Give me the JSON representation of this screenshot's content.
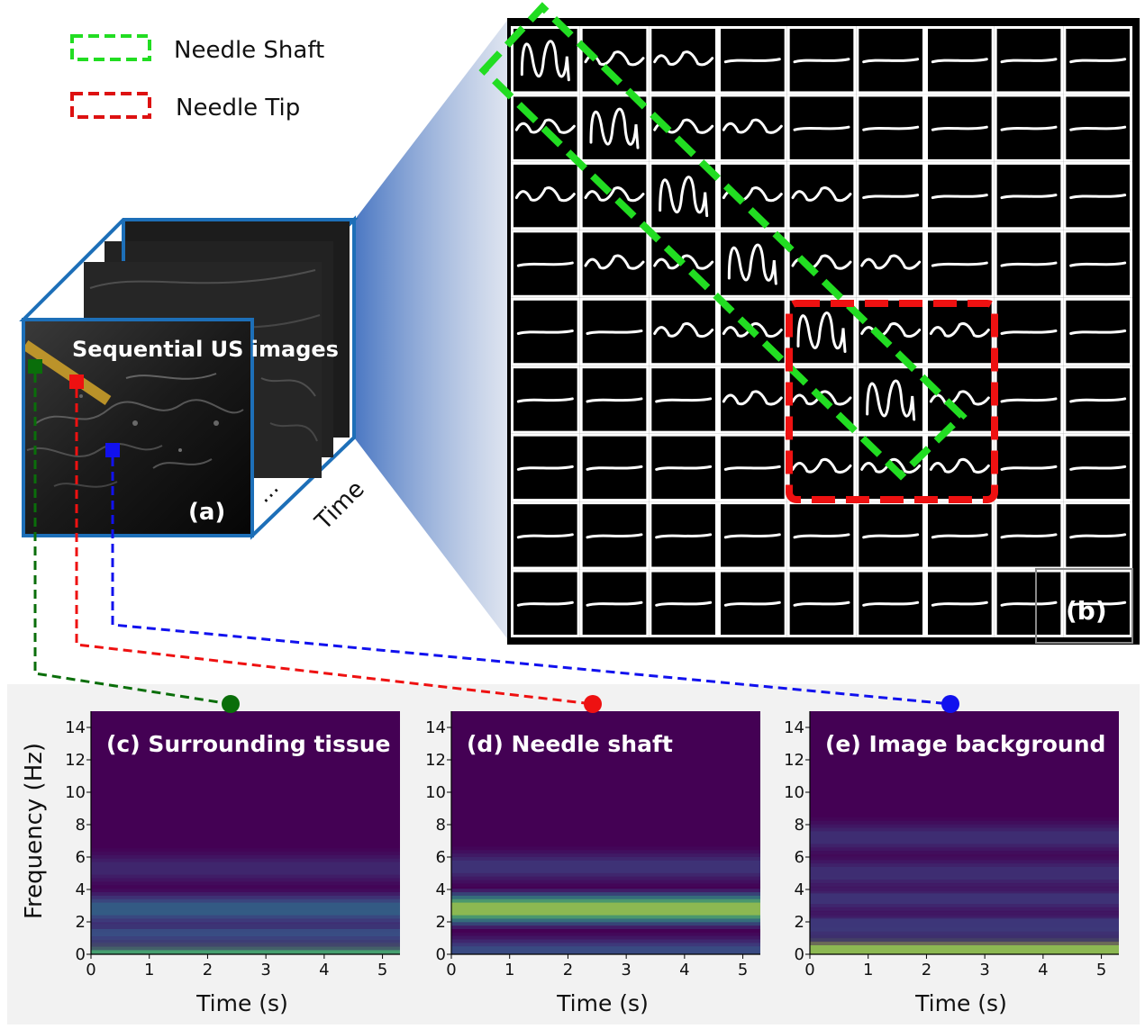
{
  "legend": {
    "items": [
      {
        "label": "Needle Shaft",
        "color": "#22dd22"
      },
      {
        "label": "Needle Tip",
        "color": "#dd1111"
      }
    ]
  },
  "panel_a": {
    "caption": "Sequential US images",
    "tag": "(a)",
    "time_label": "Time",
    "ellipsis": "…",
    "points": [
      {
        "name": "tissue-point",
        "color": "#0a6e0a"
      },
      {
        "name": "shaft-point",
        "color": "#ee1111"
      },
      {
        "name": "background-point",
        "color": "#1111ee"
      }
    ]
  },
  "panel_b": {
    "tag": "(b)",
    "rows": 9,
    "cols": 9,
    "cell_types": [
      [
        "big",
        "small",
        "small",
        "flat",
        "flat",
        "flat",
        "flat",
        "flat",
        "flat"
      ],
      [
        "small",
        "big",
        "small",
        "small",
        "flat",
        "flat",
        "flat",
        "flat",
        "flat"
      ],
      [
        "small",
        "small",
        "big",
        "small",
        "small",
        "flat",
        "flat",
        "flat",
        "flat"
      ],
      [
        "flat",
        "small",
        "small",
        "big",
        "small",
        "small",
        "flat",
        "flat",
        "flat"
      ],
      [
        "flat",
        "flat",
        "small",
        "small",
        "big",
        "small",
        "small",
        "flat",
        "flat"
      ],
      [
        "flat",
        "flat",
        "flat",
        "small",
        "small",
        "big",
        "small",
        "flat",
        "flat"
      ],
      [
        "flat",
        "flat",
        "flat",
        "flat",
        "small",
        "small",
        "small",
        "flat",
        "flat"
      ],
      [
        "flat",
        "flat",
        "flat",
        "flat",
        "flat",
        "flat",
        "flat",
        "flat",
        "flat"
      ],
      [
        "flat",
        "flat",
        "flat",
        "flat",
        "flat",
        "flat",
        "flat",
        "flat",
        "flat"
      ]
    ]
  },
  "spectrograms": {
    "ylabel": "Frequency (Hz)",
    "xlabel": "Time (s)",
    "x_ticks": [
      "0",
      "1",
      "2",
      "3",
      "4",
      "5"
    ],
    "y_ticks": [
      "0",
      "2",
      "4",
      "6",
      "8",
      "10",
      "12",
      "14"
    ],
    "panels": [
      {
        "name": "spectrogram-tissue",
        "title": "(c) Surrounding tissue",
        "marker_color": "#0a6e0a"
      },
      {
        "name": "spectrogram-shaft",
        "title": "(d) Needle shaft",
        "marker_color": "#ee1111"
      },
      {
        "name": "spectrogram-background",
        "title": "(e) Image background",
        "marker_color": "#1111ee"
      }
    ]
  },
  "chart_data": [
    {
      "type": "heatmap",
      "title": "(c) Surrounding tissue",
      "xlabel": "Time (s)",
      "ylabel": "Frequency (Hz)",
      "xlim": [
        0,
        5.3
      ],
      "ylim": [
        0,
        15
      ],
      "bands": [
        {
          "freq": 0.35,
          "intensity": 0.75
        },
        {
          "freq": 1.5,
          "intensity": 0.3
        },
        {
          "freq": 2.8,
          "intensity": 0.38
        },
        {
          "freq": 5.3,
          "intensity": 0.15
        }
      ]
    },
    {
      "type": "heatmap",
      "title": "(d) Needle shaft",
      "xlabel": "Time (s)",
      "ylabel": "Frequency (Hz)",
      "xlim": [
        0,
        5.3
      ],
      "ylim": [
        0,
        15
      ],
      "bands": [
        {
          "freq": 0.1,
          "intensity": 0.3
        },
        {
          "freq": 2.8,
          "intensity": 0.95
        },
        {
          "freq": 5.4,
          "intensity": 0.2
        }
      ]
    },
    {
      "type": "heatmap",
      "title": "(e) Image background",
      "xlabel": "Time (s)",
      "ylabel": "Frequency (Hz)",
      "xlim": [
        0,
        5.3
      ],
      "ylim": [
        0,
        15
      ],
      "bands": [
        {
          "freq": 0.4,
          "intensity": 0.95
        },
        {
          "freq": 1.8,
          "intensity": 0.22
        },
        {
          "freq": 3.5,
          "intensity": 0.2
        },
        {
          "freq": 5.0,
          "intensity": 0.18
        },
        {
          "freq": 7.2,
          "intensity": 0.18
        }
      ]
    }
  ]
}
